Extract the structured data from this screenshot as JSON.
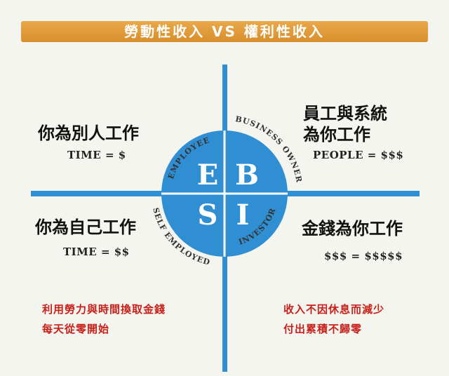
{
  "title": "勞動性收入 VS 權利性收入",
  "quadrants": {
    "employee": {
      "label": "EMPLOYEE",
      "letter": "E",
      "heading": "你為別人工作",
      "formula": "TIME = $"
    },
    "business_owner": {
      "label": "BUSINESS OWNER",
      "letter": "B",
      "heading_line1": "員工與系統",
      "heading_line2": "為你工作",
      "formula": "PEOPLE = $$$"
    },
    "self_employed": {
      "label": "SELF EMPLOYED",
      "letter": "S",
      "heading": "你為自己工作",
      "formula": "TIME = $$"
    },
    "investor": {
      "label": "INVESTOR",
      "letter": "I",
      "heading": "金錢為你工作",
      "formula": "$$$ = $$$$$"
    }
  },
  "notes": {
    "left_line1": "利用勞力與時間換取金錢",
    "left_line2": "每天從零開始",
    "right_line1": "收入不因休息而減少",
    "right_line2": "付出累積不歸零"
  },
  "colors": {
    "accent": "#2e8fd4",
    "title_bar": "#e09a3a",
    "note_red": "#c8201a"
  }
}
